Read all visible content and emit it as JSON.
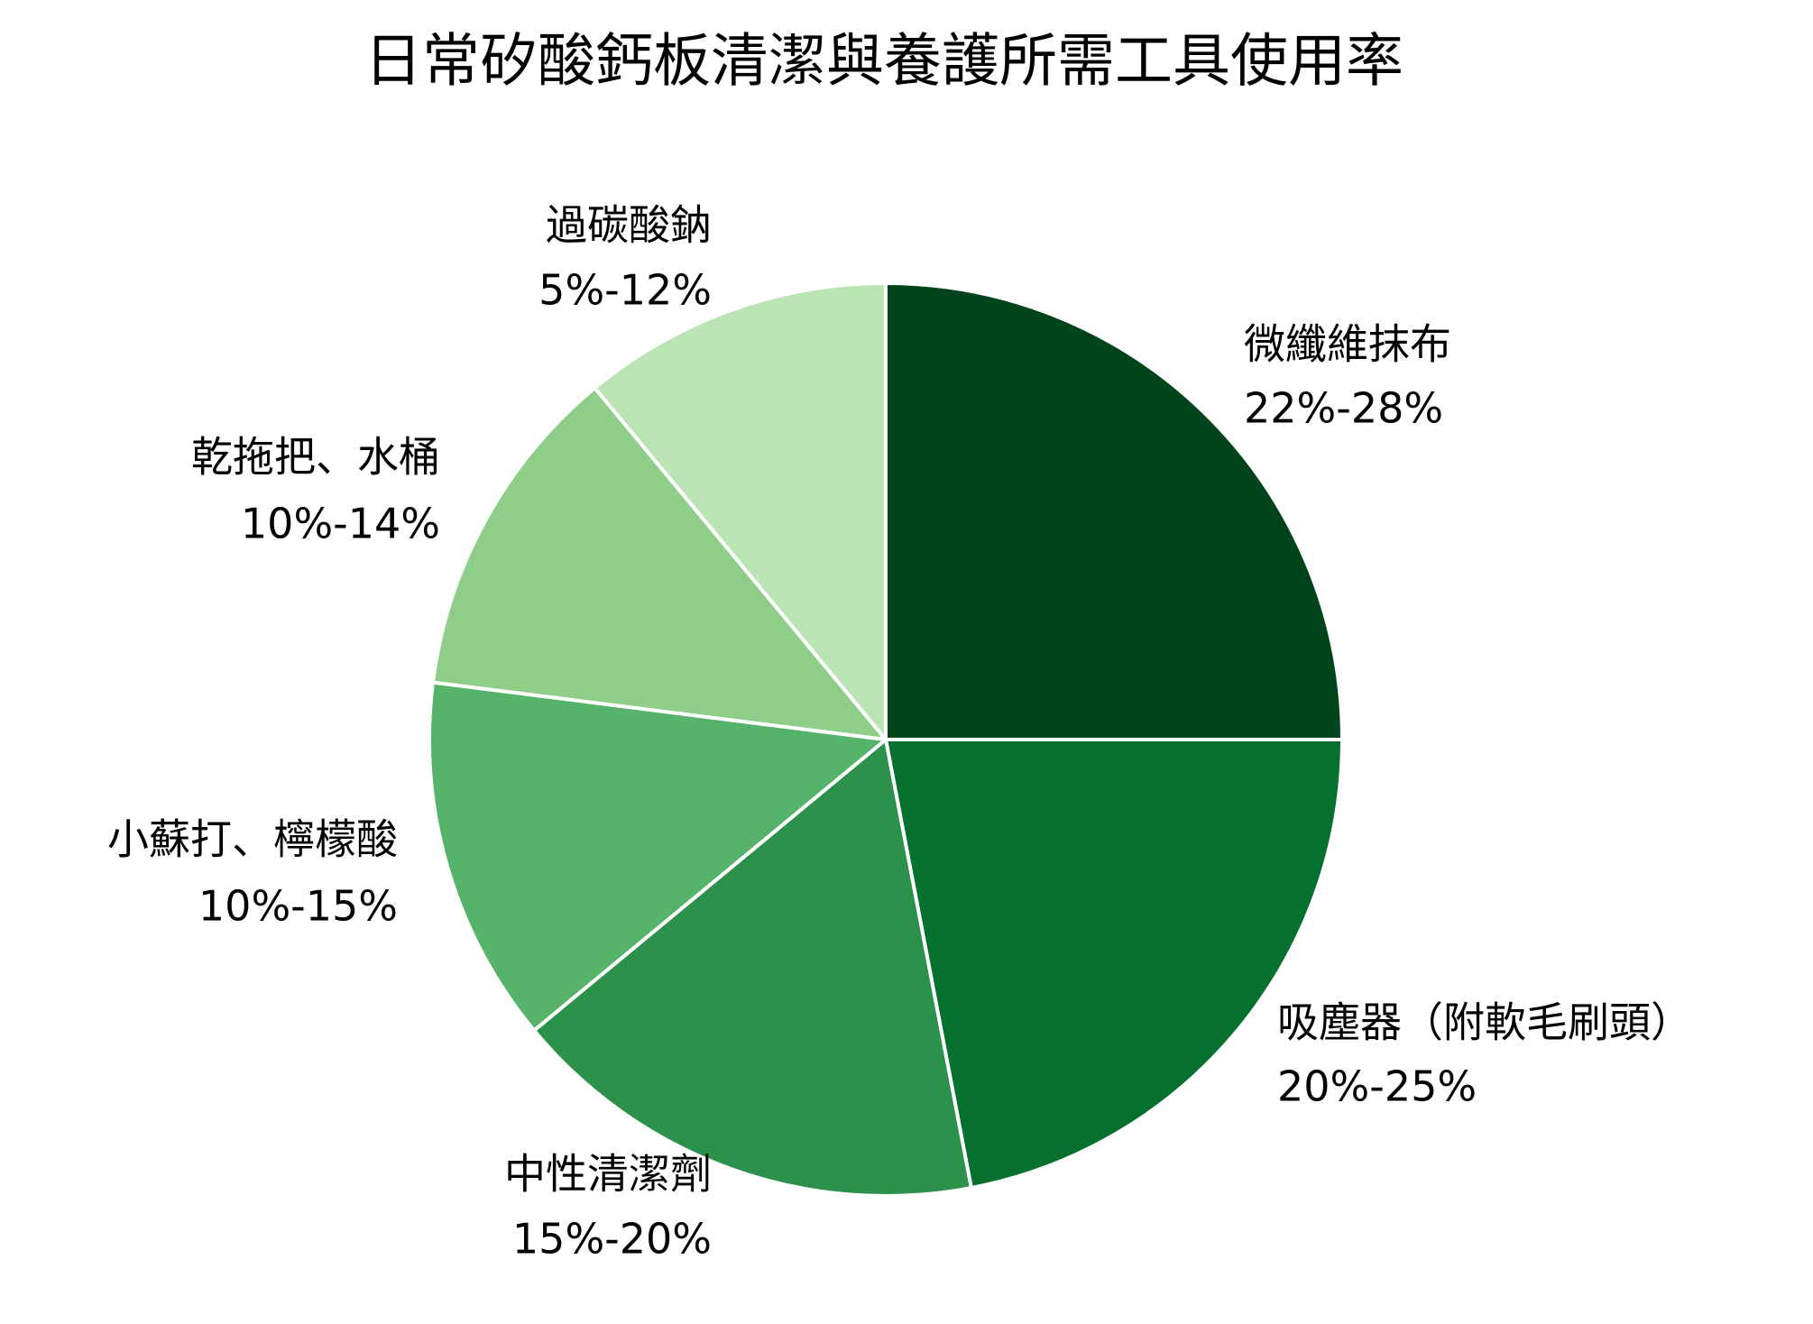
{
  "chart_data": {
    "type": "pie",
    "title": "日常矽酸鈣板清潔與養護所需工具使用率",
    "categories": [
      "微纖維抹布",
      "吸塵器（附軟毛刷頭）",
      "中性清潔劑",
      "小蘇打、檸檬酸",
      "乾拖把、水桶",
      "過碳酸鈉"
    ],
    "ranges": [
      "22%-28%",
      "20%-25%",
      "15%-20%",
      "10%-15%",
      "10%-14%",
      "5%-12%"
    ],
    "values": [
      25,
      22,
      17,
      13,
      12,
      11
    ],
    "colors": [
      "#00441b",
      "#06702f",
      "#2c924b",
      "#56b36a",
      "#8fce88",
      "#bae4b3"
    ]
  }
}
